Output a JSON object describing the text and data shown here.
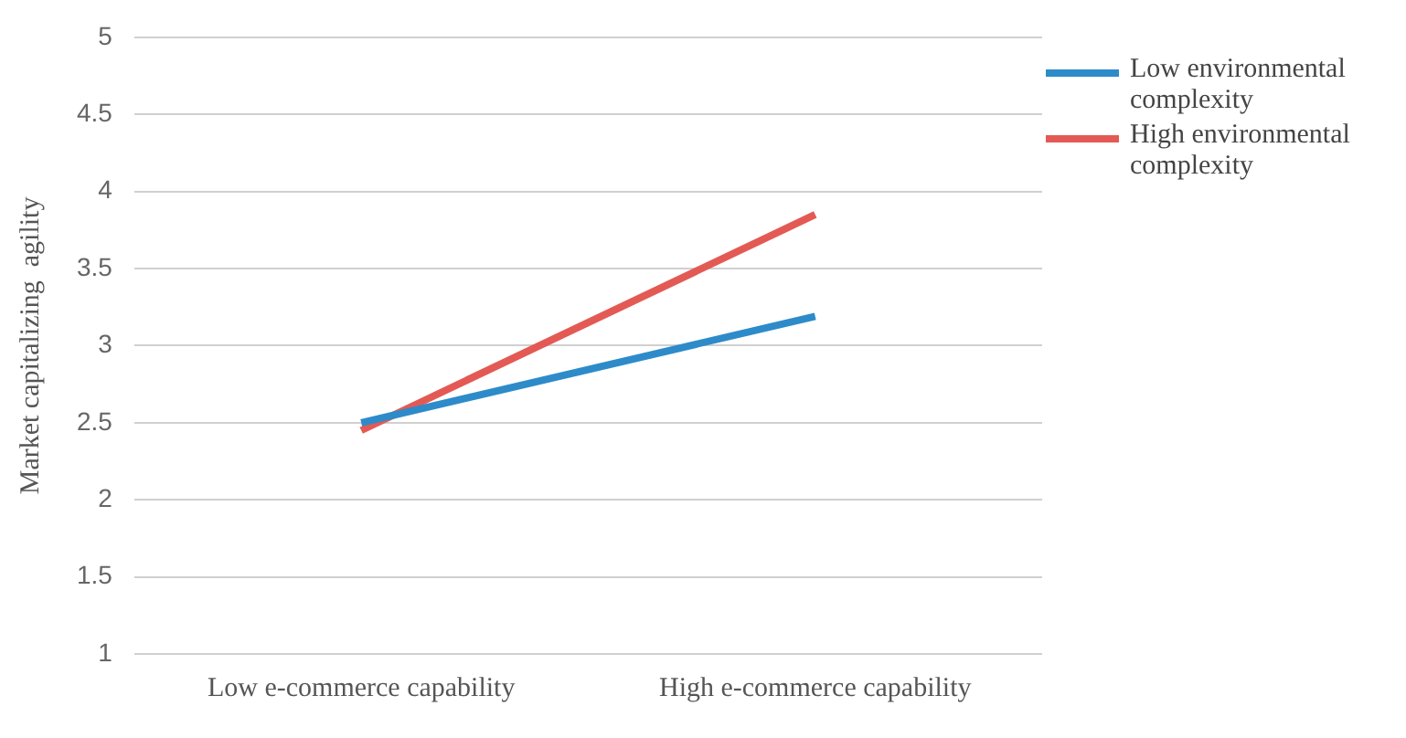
{
  "chart_data": {
    "type": "line",
    "ylabel": "Market capitalizing  agility",
    "categories": [
      "Low e-commerce capability",
      "High e-commerce capability"
    ],
    "series": [
      {
        "name": "Low environmental complexity",
        "color": "#2e8bc9",
        "values": [
          2.5,
          3.19
        ]
      },
      {
        "name": "High environmental complexity",
        "color": "#e35a55",
        "values": [
          2.45,
          3.85
        ]
      }
    ],
    "ylim": [
      1,
      5
    ],
    "yticks": [
      1,
      1.5,
      2,
      2.5,
      3,
      3.5,
      4,
      4.5,
      5
    ],
    "grid": "y",
    "legend": "top right",
    "marker": "none",
    "line_style": "solid"
  }
}
